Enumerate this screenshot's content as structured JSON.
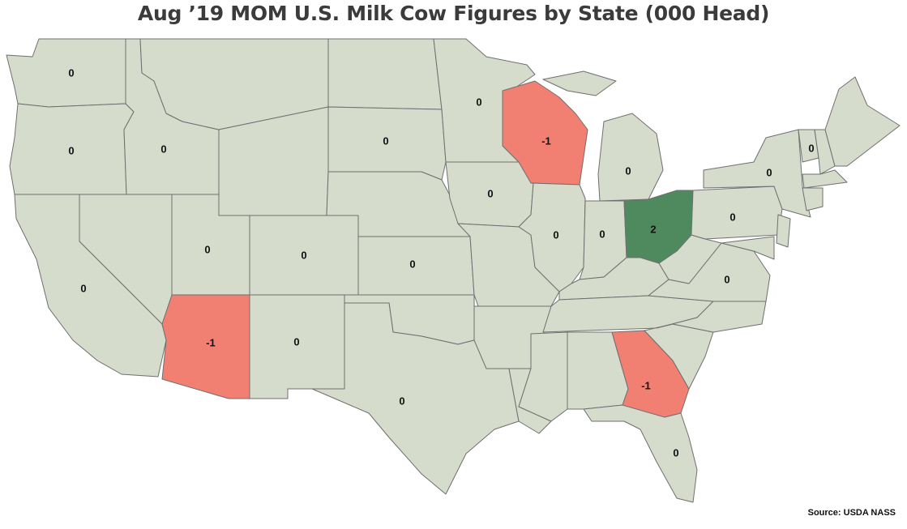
{
  "title": "Aug ’19 MOM U.S. Milk Cow Figures by State (000 Head)",
  "source": "Source: USDA NASS",
  "colors": {
    "neutral": "#d5dccb",
    "decrease": "#f28072",
    "increase": "#4f8a5f",
    "border": "#6f6f6f"
  },
  "states": [
    {
      "id": "WA",
      "value": "0"
    },
    {
      "id": "OR",
      "value": "0"
    },
    {
      "id": "ID",
      "value": "0"
    },
    {
      "id": "CA",
      "value": "0"
    },
    {
      "id": "UT",
      "value": "0"
    },
    {
      "id": "AZ",
      "value": "-1"
    },
    {
      "id": "CO",
      "value": "0"
    },
    {
      "id": "NM",
      "value": "0"
    },
    {
      "id": "SD",
      "value": "0"
    },
    {
      "id": "KS",
      "value": "0"
    },
    {
      "id": "TX",
      "value": "0"
    },
    {
      "id": "MN",
      "value": "0"
    },
    {
      "id": "IA",
      "value": "0"
    },
    {
      "id": "WI",
      "value": "-1"
    },
    {
      "id": "IL",
      "value": "0"
    },
    {
      "id": "MI",
      "value": "0"
    },
    {
      "id": "IN",
      "value": "0"
    },
    {
      "id": "OH",
      "value": "2"
    },
    {
      "id": "NY",
      "value": "0"
    },
    {
      "id": "VT",
      "value": "0"
    },
    {
      "id": "PA",
      "value": "0"
    },
    {
      "id": "VA",
      "value": "0"
    },
    {
      "id": "GA",
      "value": "-1"
    },
    {
      "id": "FL",
      "value": "0"
    }
  ]
}
